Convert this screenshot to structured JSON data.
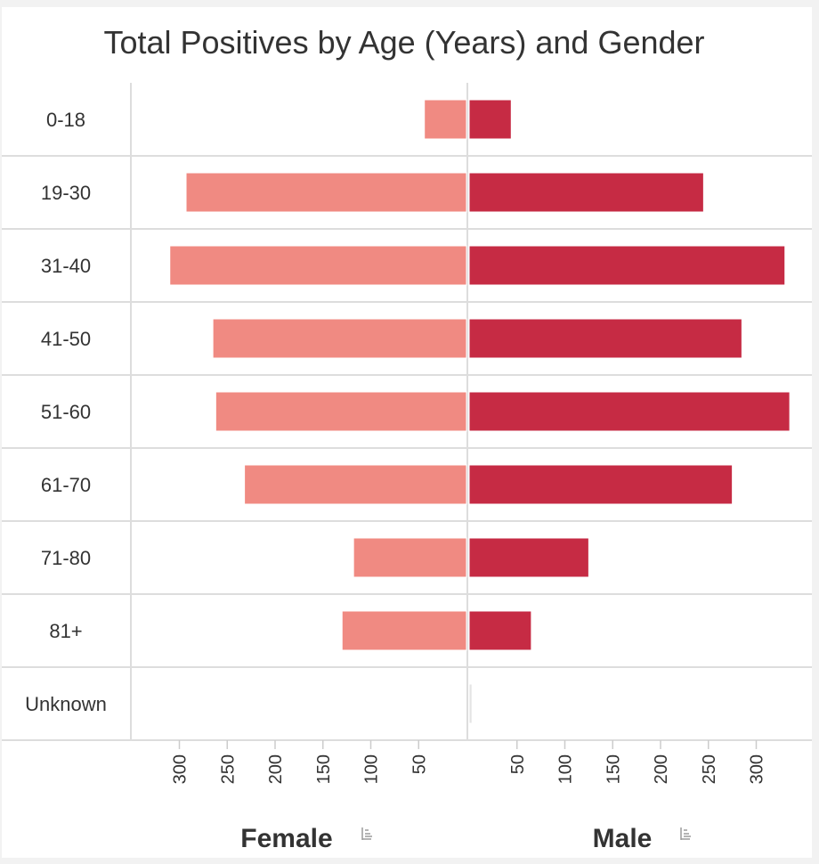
{
  "chart_data": {
    "type": "bar",
    "orientation": "horizontal",
    "layout": "diverging",
    "title": "Total Positives by Age (Years) and Gender",
    "categories": [
      "0-18",
      "19-30",
      "31-40",
      "41-50",
      "51-60",
      "61-70",
      "71-80",
      "81+",
      "Unknown"
    ],
    "series": [
      {
        "name": "Female",
        "direction": "left",
        "values": [
          44,
          293,
          310,
          265,
          262,
          232,
          118,
          130,
          0
        ]
      },
      {
        "name": "Male",
        "direction": "right",
        "values": [
          44,
          245,
          330,
          285,
          335,
          275,
          125,
          65,
          3
        ]
      }
    ],
    "female_ticks": [
      300,
      250,
      200,
      150,
      100,
      50
    ],
    "male_ticks": [
      50,
      100,
      150,
      200,
      250,
      300
    ],
    "xlim": [
      0,
      340
    ],
    "grid": true,
    "colors": {
      "female": "#f08a82",
      "male": "#c62b44",
      "unknown": "#e4e4e4"
    }
  },
  "icons": {
    "female_sort": "sort-icon",
    "male_sort": "sort-icon"
  }
}
